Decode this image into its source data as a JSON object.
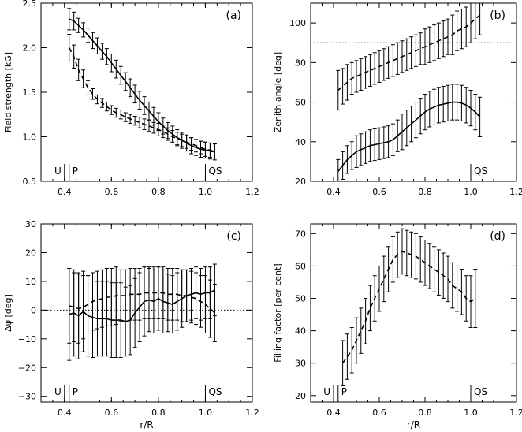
{
  "chart_data": [
    {
      "id": "a",
      "type": "line",
      "panel_label": "(a)",
      "xlabel": "",
      "ylabel": "Field strength [kG]",
      "xlim": [
        0.3,
        1.2
      ],
      "ylim": [
        0.5,
        2.5
      ],
      "xticks": [
        "0.4",
        "0.6",
        "0.8",
        "1.0",
        "1.2"
      ],
      "yticks": [
        "0.5",
        "1.0",
        "1.5",
        "2.0",
        "2.5"
      ],
      "markers": [
        {
          "x": 0.4,
          "label": "U",
          "side": "left"
        },
        {
          "x": 0.42,
          "label": "P",
          "side": "right"
        },
        {
          "x": 1.0,
          "label": "QS",
          "side": "right"
        }
      ],
      "series": [
        {
          "style": "solid",
          "x": [
            0.42,
            0.44,
            0.46,
            0.48,
            0.5,
            0.52,
            0.54,
            0.56,
            0.58,
            0.6,
            0.62,
            0.64,
            0.66,
            0.68,
            0.7,
            0.72,
            0.74,
            0.76,
            0.78,
            0.8,
            0.82,
            0.84,
            0.86,
            0.88,
            0.9,
            0.92,
            0.94,
            0.96,
            0.98,
            1.0,
            1.02,
            1.04
          ],
          "y": [
            2.32,
            2.3,
            2.25,
            2.2,
            2.14,
            2.08,
            2.02,
            1.96,
            1.9,
            1.83,
            1.76,
            1.69,
            1.62,
            1.55,
            1.48,
            1.41,
            1.35,
            1.29,
            1.23,
            1.17,
            1.12,
            1.07,
            1.03,
            0.99,
            0.96,
            0.93,
            0.9,
            0.88,
            0.86,
            0.85,
            0.84,
            0.83
          ],
          "err": [
            0.12,
            0.1,
            0.08,
            0.08,
            0.08,
            0.09,
            0.09,
            0.09,
            0.09,
            0.1,
            0.1,
            0.1,
            0.1,
            0.1,
            0.1,
            0.1,
            0.1,
            0.1,
            0.1,
            0.1,
            0.09,
            0.09,
            0.09,
            0.09,
            0.09,
            0.09,
            0.09,
            0.09,
            0.09,
            0.09,
            0.09,
            0.09
          ]
        },
        {
          "style": "dashed",
          "x": [
            0.42,
            0.44,
            0.46,
            0.48,
            0.5,
            0.52,
            0.54,
            0.56,
            0.58,
            0.6,
            0.62,
            0.64,
            0.66,
            0.68,
            0.7,
            0.72,
            0.74,
            0.76,
            0.78,
            0.8,
            0.82,
            0.84,
            0.86,
            0.88,
            0.9,
            0.92,
            0.94,
            0.96,
            0.98,
            1.0,
            1.02,
            1.04
          ],
          "y": [
            2.0,
            1.9,
            1.75,
            1.65,
            1.55,
            1.48,
            1.42,
            1.38,
            1.34,
            1.3,
            1.27,
            1.25,
            1.22,
            1.2,
            1.18,
            1.16,
            1.14,
            1.12,
            1.1,
            1.08,
            1.06,
            1.03,
            1.0,
            0.98,
            0.96,
            0.94,
            0.92,
            0.9,
            0.88,
            0.86,
            0.85,
            0.84
          ],
          "err": [
            0.15,
            0.13,
            0.12,
            0.1,
            0.08,
            0.06,
            0.05,
            0.05,
            0.05,
            0.05,
            0.05,
            0.05,
            0.05,
            0.05,
            0.05,
            0.06,
            0.06,
            0.06,
            0.06,
            0.07,
            0.07,
            0.07,
            0.07,
            0.07,
            0.07,
            0.07,
            0.07,
            0.07,
            0.07,
            0.08,
            0.08,
            0.08
          ]
        }
      ]
    },
    {
      "id": "b",
      "type": "line",
      "panel_label": "(b)",
      "xlabel": "",
      "ylabel": "Zenith angle [deg]",
      "xlim": [
        0.3,
        1.2
      ],
      "ylim": [
        20,
        110
      ],
      "xticks": [
        "0.4",
        "0.6",
        "0.8",
        "1.0",
        "1.2"
      ],
      "yticks": [
        "20",
        "40",
        "60",
        "80",
        "100"
      ],
      "reference_line": 90,
      "markers": [
        {
          "x": 1.0,
          "label": "QS",
          "side": "right"
        }
      ],
      "series": [
        {
          "style": "dashed",
          "x": [
            0.42,
            0.44,
            0.46,
            0.48,
            0.5,
            0.52,
            0.54,
            0.56,
            0.58,
            0.6,
            0.62,
            0.64,
            0.66,
            0.68,
            0.7,
            0.72,
            0.74,
            0.76,
            0.78,
            0.8,
            0.82,
            0.84,
            0.86,
            0.88,
            0.9,
            0.92,
            0.94,
            0.96,
            0.98,
            1.0,
            1.02,
            1.04
          ],
          "y": [
            66,
            68,
            70,
            72,
            73,
            74,
            75,
            76,
            77,
            78,
            79,
            80,
            81,
            82,
            83,
            84,
            85,
            86,
            87,
            88,
            89,
            90,
            91,
            92,
            93,
            94,
            96,
            97,
            98,
            100,
            102,
            104
          ],
          "err": [
            10,
            9,
            9,
            8,
            8,
            8,
            8,
            8,
            8,
            8,
            8,
            8,
            8,
            8,
            8,
            8,
            8,
            8,
            8,
            9,
            9,
            9,
            9,
            9,
            9,
            10,
            10,
            10,
            10,
            10,
            10,
            10
          ]
        },
        {
          "style": "solid",
          "x": [
            0.42,
            0.44,
            0.46,
            0.48,
            0.5,
            0.52,
            0.54,
            0.56,
            0.58,
            0.6,
            0.62,
            0.64,
            0.66,
            0.68,
            0.7,
            0.72,
            0.74,
            0.76,
            0.78,
            0.8,
            0.82,
            0.84,
            0.86,
            0.88,
            0.9,
            0.92,
            0.94,
            0.96,
            0.98,
            1.0,
            1.02,
            1.04
          ],
          "y": [
            25,
            28,
            31,
            33,
            35,
            36,
            37,
            38,
            38.5,
            39,
            39.5,
            40,
            41,
            43,
            45,
            47,
            49,
            51,
            53,
            55,
            56.5,
            57.5,
            58.5,
            59,
            59.5,
            60,
            60,
            59.5,
            58.5,
            57,
            55,
            52.5
          ],
          "err": [
            6,
            7,
            7,
            7,
            8,
            8,
            8,
            8,
            8,
            8,
            8,
            8,
            8,
            8,
            9,
            9,
            9,
            9,
            9,
            9,
            9,
            9,
            9,
            9,
            9,
            9,
            9,
            9,
            9,
            9,
            9,
            10
          ]
        }
      ]
    },
    {
      "id": "c",
      "type": "line",
      "panel_label": "(c)",
      "xlabel": "r/R",
      "ylabel": "Δψ [deg]",
      "xlim": [
        0.3,
        1.2
      ],
      "ylim": [
        -32,
        30
      ],
      "xticks": [
        "0.4",
        "0.6",
        "0.8",
        "1.0",
        "1.2"
      ],
      "yticks": [
        "−30",
        "−20",
        "−10",
        "0",
        "10",
        "20",
        "30"
      ],
      "ytick_values": [
        -30,
        -20,
        -10,
        0,
        10,
        20,
        30
      ],
      "reference_line": 0,
      "markers": [
        {
          "x": 0.4,
          "label": "U",
          "side": "left"
        },
        {
          "x": 0.42,
          "label": "P",
          "side": "right"
        },
        {
          "x": 1.0,
          "label": "QS",
          "side": "right"
        }
      ],
      "series": [
        {
          "style": "dashed",
          "x": [
            0.42,
            0.44,
            0.46,
            0.48,
            0.5,
            0.52,
            0.54,
            0.56,
            0.58,
            0.6,
            0.62,
            0.64,
            0.66,
            0.68,
            0.7,
            0.72,
            0.74,
            0.76,
            0.78,
            0.8,
            0.82,
            0.84,
            0.86,
            0.88,
            0.9,
            0.92,
            0.94,
            0.96,
            0.98,
            1.0,
            1.02,
            1.04
          ],
          "y": [
            1.5,
            1,
            0.5,
            1,
            2,
            3,
            3.5,
            4,
            4.5,
            4.5,
            5,
            5,
            5,
            5.5,
            5.5,
            5.5,
            6,
            6,
            6,
            6,
            6,
            5.5,
            5.5,
            5.5,
            5,
            5,
            4.5,
            4,
            3,
            2,
            0.5,
            -1
          ],
          "err": [
            13,
            12,
            12,
            11,
            10,
            10,
            10,
            10,
            10,
            10,
            10,
            9,
            9,
            9,
            9,
            9,
            9,
            9,
            9,
            9,
            9,
            9,
            9,
            9,
            9,
            9,
            9,
            9,
            9,
            10,
            10,
            10
          ]
        },
        {
          "style": "solid",
          "x": [
            0.42,
            0.44,
            0.46,
            0.48,
            0.5,
            0.52,
            0.54,
            0.56,
            0.58,
            0.6,
            0.62,
            0.64,
            0.66,
            0.68,
            0.7,
            0.72,
            0.74,
            0.76,
            0.78,
            0.8,
            0.82,
            0.84,
            0.86,
            0.88,
            0.9,
            0.92,
            0.94,
            0.96,
            0.98,
            1.0,
            1.02,
            1.04
          ],
          "y": [
            -1.5,
            -1,
            -2,
            -0.5,
            -2,
            -2.5,
            -3,
            -3,
            -3,
            -3.5,
            -3.5,
            -3.5,
            -4,
            -3.5,
            -1,
            1,
            3,
            3.5,
            3,
            4,
            3,
            2.5,
            2,
            3,
            4,
            5,
            5.5,
            6,
            5.5,
            6,
            6,
            7
          ],
          "err": [
            16,
            15,
            15,
            14,
            14,
            14,
            13,
            13,
            13,
            13,
            13,
            13,
            12,
            12,
            12,
            12,
            12,
            11,
            11,
            11,
            11,
            10,
            10,
            10,
            10,
            9,
            9,
            9,
            9,
            9,
            9,
            9
          ]
        }
      ]
    },
    {
      "id": "d",
      "type": "line",
      "panel_label": "(d)",
      "xlabel": "r/R",
      "ylabel": "Filling factor [per cent]",
      "xlim": [
        0.3,
        1.2
      ],
      "ylim": [
        18,
        73
      ],
      "xticks": [
        "0.4",
        "0.6",
        "0.8",
        "1.0",
        "1.2"
      ],
      "yticks": [
        "20",
        "30",
        "40",
        "50",
        "60",
        "70"
      ],
      "markers": [
        {
          "x": 0.4,
          "label": "U",
          "side": "left"
        },
        {
          "x": 0.42,
          "label": "P",
          "side": "right"
        },
        {
          "x": 1.0,
          "label": "QS",
          "side": "right"
        }
      ],
      "series": [
        {
          "style": "dashed",
          "x": [
            0.44,
            0.46,
            0.48,
            0.5,
            0.52,
            0.54,
            0.56,
            0.58,
            0.6,
            0.62,
            0.64,
            0.66,
            0.68,
            0.7,
            0.72,
            0.74,
            0.76,
            0.78,
            0.8,
            0.82,
            0.84,
            0.86,
            0.88,
            0.9,
            0.92,
            0.94,
            0.96,
            0.98,
            1.0,
            1.02
          ],
          "y": [
            30,
            32,
            34,
            37,
            40,
            43,
            47,
            50,
            53,
            56,
            59,
            62,
            63.5,
            64.5,
            64,
            63.5,
            63,
            62,
            61,
            60,
            59,
            58,
            57,
            56,
            54,
            53,
            52,
            50,
            49,
            50
          ],
          "err": [
            7,
            7,
            7,
            7,
            7,
            7,
            7,
            7,
            7,
            7,
            7,
            7,
            7,
            7,
            7,
            7,
            7,
            7,
            7,
            7,
            7,
            7,
            7,
            7,
            7,
            7,
            7,
            7,
            8,
            9
          ]
        }
      ]
    }
  ]
}
